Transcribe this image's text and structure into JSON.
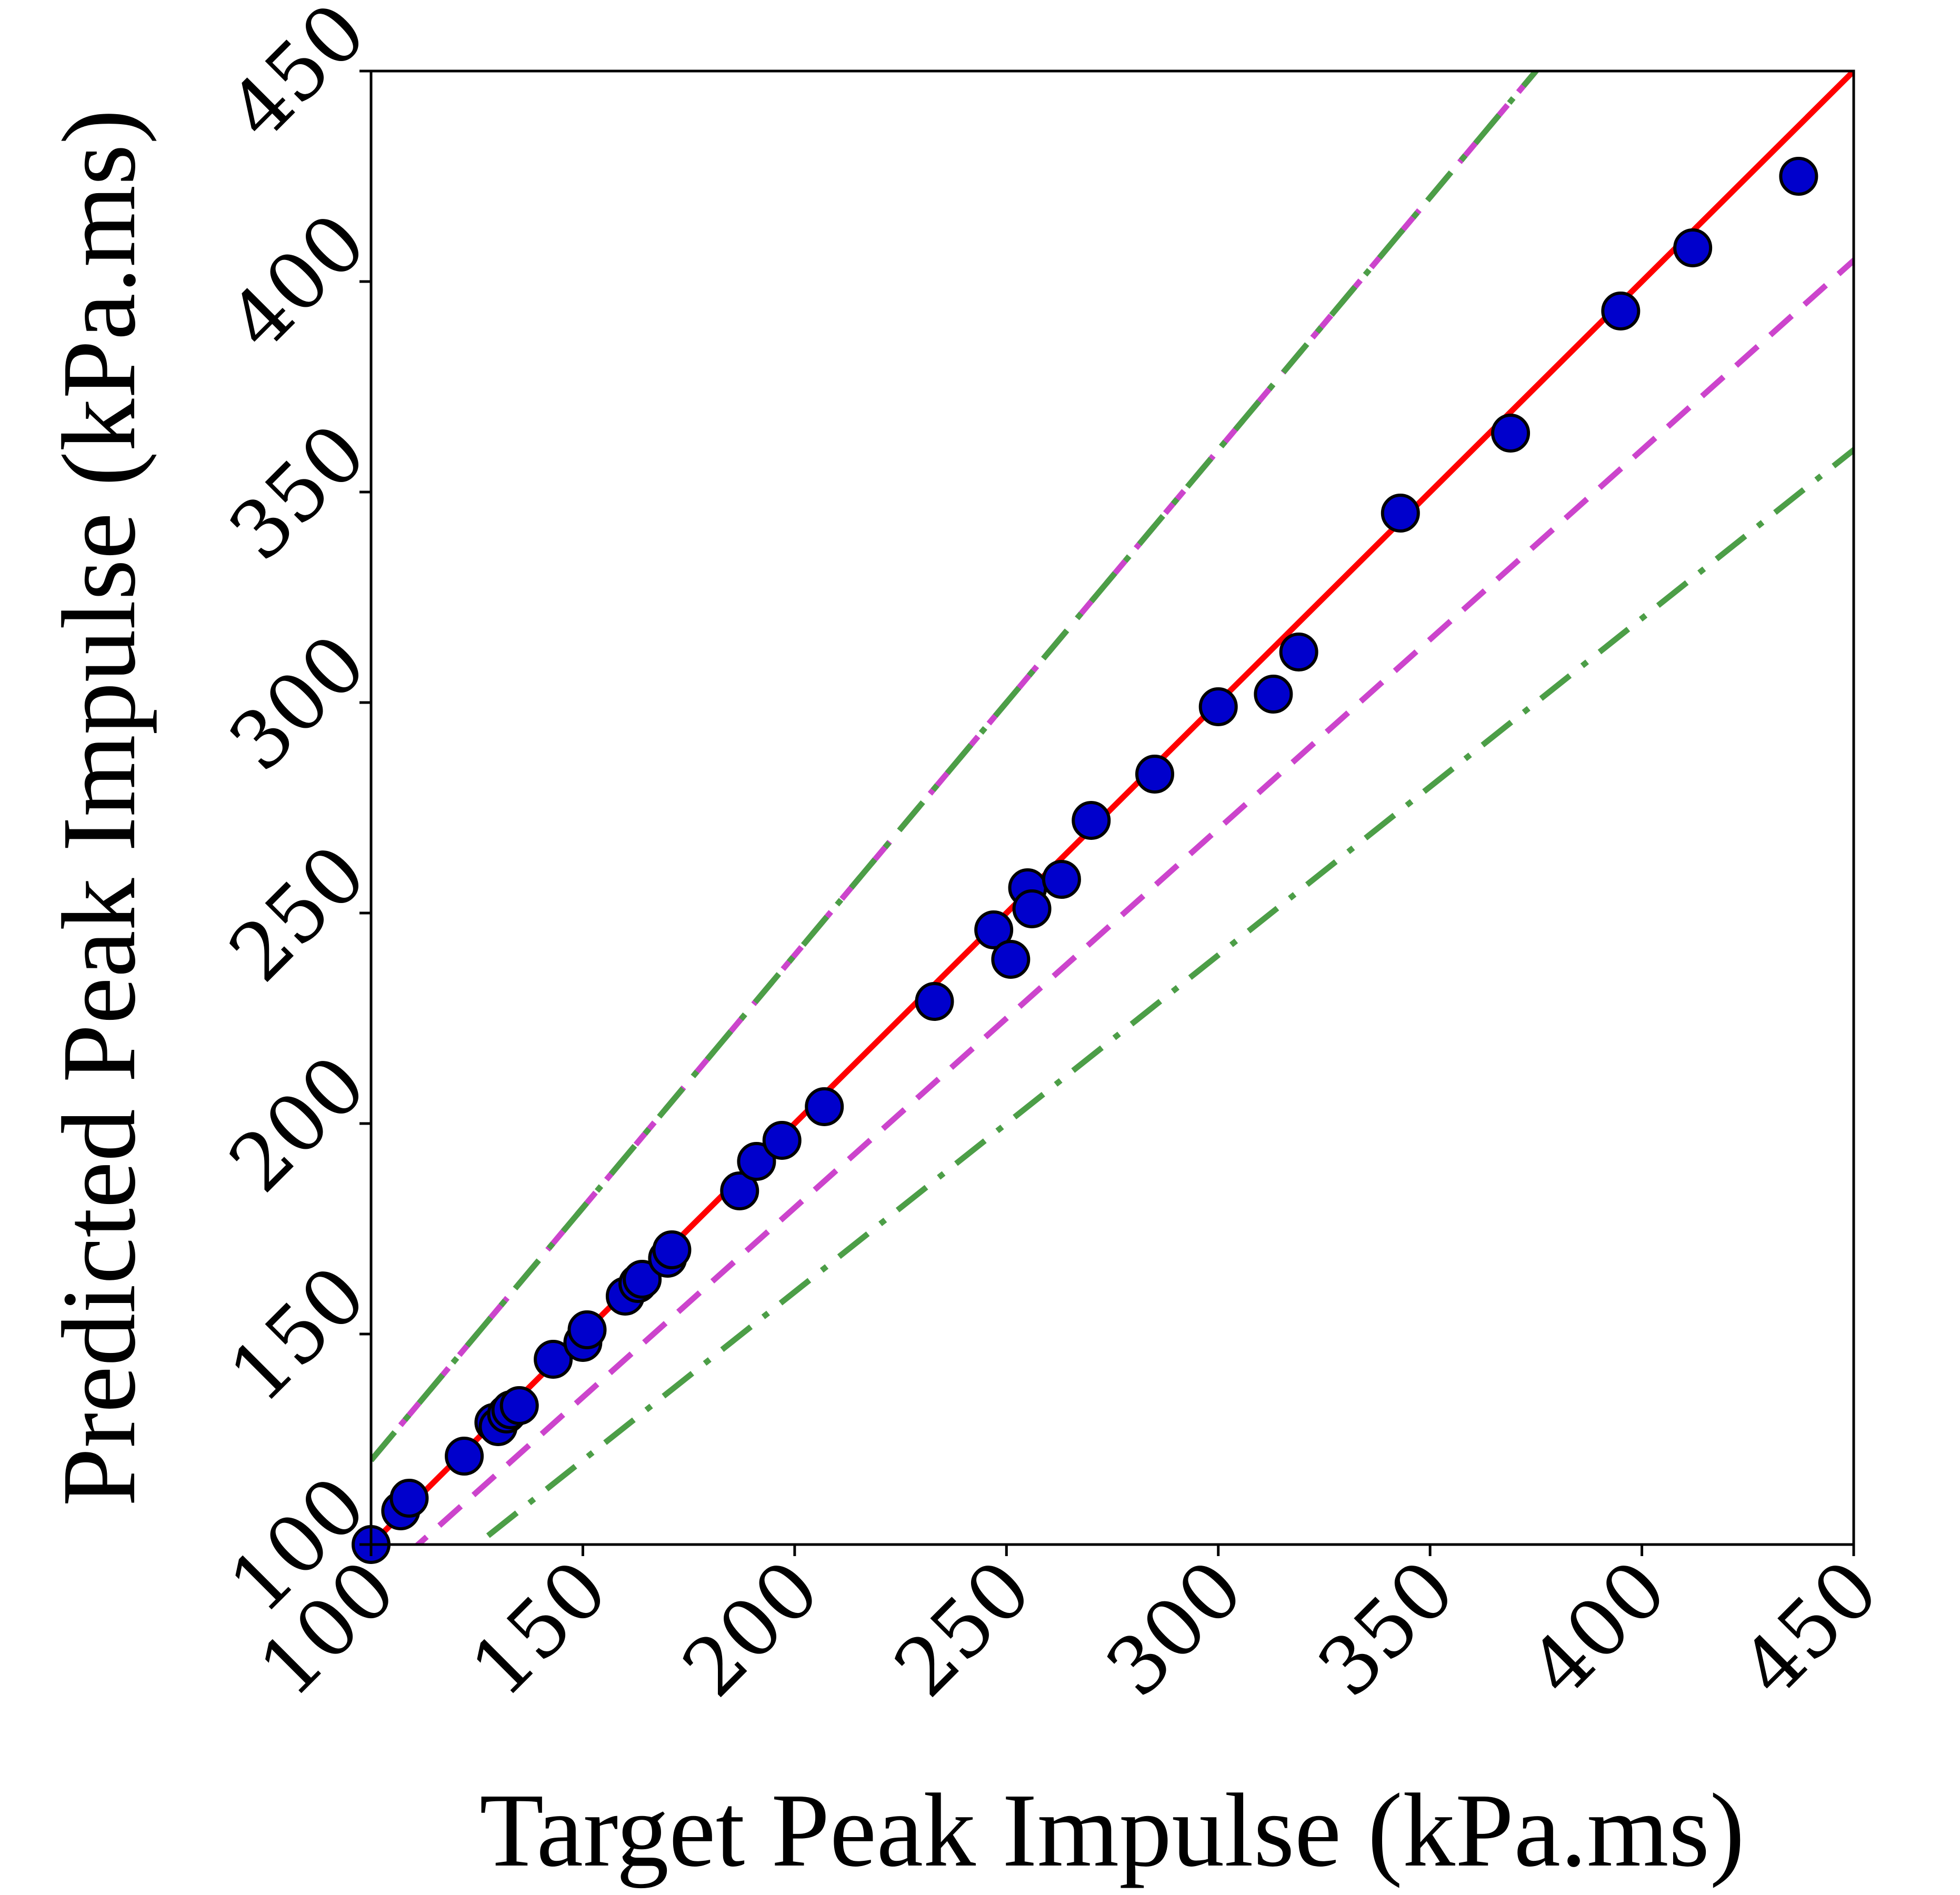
{
  "chart_data": {
    "type": "scatter",
    "xlabel": "Target Peak Impulse (kPa.ms)",
    "ylabel": "Predicted Peak Impulse (kPa.ms)",
    "xlim": [
      100,
      450
    ],
    "ylim": [
      100,
      450
    ],
    "xticks": [
      "100",
      "150",
      "200",
      "250",
      "300",
      "350",
      "400",
      "450"
    ],
    "yticks": [
      "100",
      "150",
      "200",
      "250",
      "300",
      "350",
      "400",
      "450"
    ],
    "grid": false,
    "legend": "none",
    "reference_lines": [
      {
        "slope": 1.0,
        "style": "solid",
        "color": "#ff0000"
      },
      {
        "slope": 1.2,
        "style": "dashed",
        "color": "#cc44cc"
      },
      {
        "slope": 0.9,
        "style": "dashed",
        "color": "#cc44cc"
      },
      {
        "slope": 1.2,
        "intercept": 0,
        "style": "dashdot",
        "color": "#4c9e47"
      },
      {
        "slope": 0.8,
        "style": "dashdot",
        "color": "#4c9e47"
      }
    ],
    "series": [
      {
        "marker_color": "#0000cc",
        "points": [
          [
            100,
            100
          ],
          [
            107,
            108
          ],
          [
            109,
            111
          ],
          [
            122,
            121
          ],
          [
            129,
            129
          ],
          [
            130,
            128
          ],
          [
            132,
            131
          ],
          [
            133,
            132
          ],
          [
            135,
            133
          ],
          [
            143,
            144
          ],
          [
            150,
            148
          ],
          [
            151,
            151
          ],
          [
            160,
            159
          ],
          [
            163,
            162
          ],
          [
            164,
            163
          ],
          [
            170,
            168
          ],
          [
            171,
            170
          ],
          [
            187,
            184
          ],
          [
            191,
            191
          ],
          [
            197,
            196
          ],
          [
            207,
            204
          ],
          [
            233,
            229
          ],
          [
            247,
            246
          ],
          [
            251,
            239
          ],
          [
            255,
            256
          ],
          [
            256,
            251
          ],
          [
            263,
            258
          ],
          [
            270,
            272
          ],
          [
            285,
            283
          ],
          [
            300,
            299
          ],
          [
            313,
            302
          ],
          [
            319,
            312
          ],
          [
            343,
            345
          ],
          [
            369,
            364
          ],
          [
            395,
            393
          ],
          [
            412,
            408
          ],
          [
            437,
            425
          ]
        ]
      }
    ]
  }
}
